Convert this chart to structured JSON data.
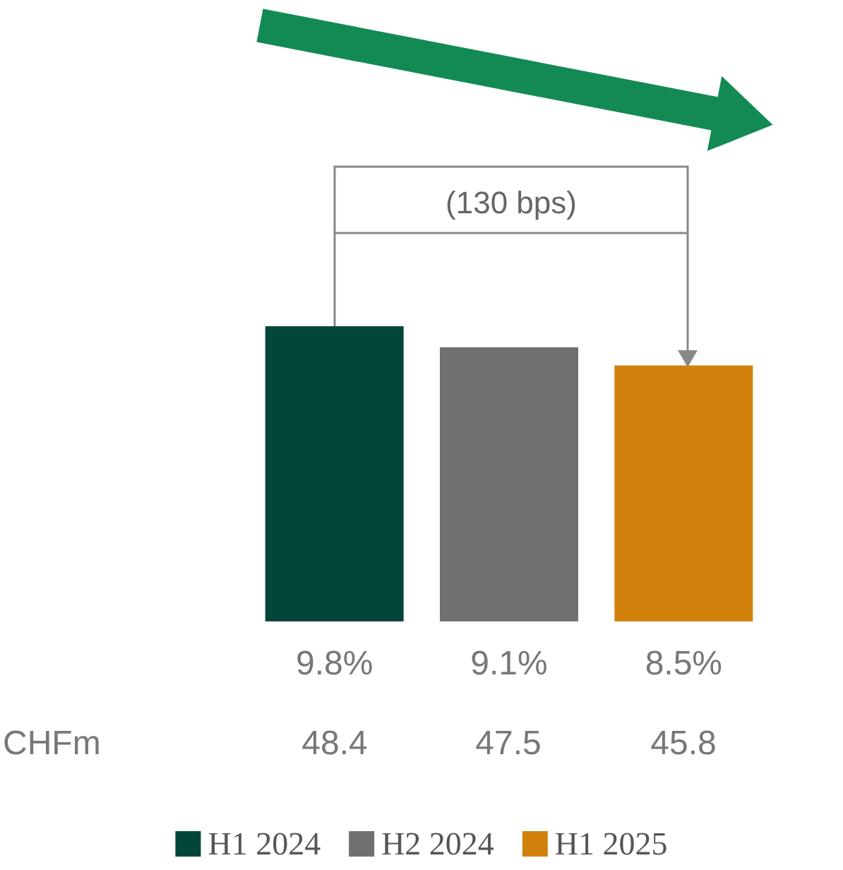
{
  "chart_data": {
    "type": "bar",
    "categories": [
      null,
      null,
      null
    ],
    "series": [
      {
        "name": "H1 2024",
        "color": "#02463a",
        "values": [
          9.8,
          null,
          null
        ],
        "value_labels": [
          "9.8%",
          null,
          null
        ]
      },
      {
        "name": "H2 2024",
        "color": "#707070",
        "values": [
          null,
          9.1,
          null
        ],
        "value_labels": [
          null,
          "9.1%",
          null
        ]
      },
      {
        "name": "H1 2025",
        "color": "#d0820c",
        "values": [
          null,
          null,
          8.5
        ],
        "value_labels": [
          null,
          null,
          "8.5%"
        ]
      }
    ],
    "annotations": [
      "(130 bps)",
      "CHFm",
      "48.4",
      "47.5",
      "45.8"
    ],
    "stacked": true,
    "tick_labels": false,
    "legend": "bottom"
  }
}
